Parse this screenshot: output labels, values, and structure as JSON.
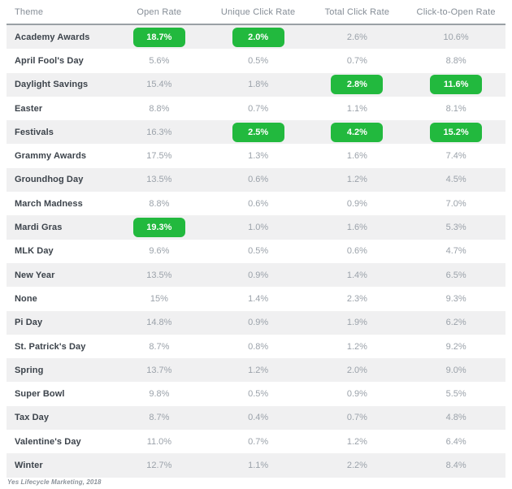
{
  "chart_data": {
    "type": "table",
    "columns": [
      "Theme",
      "Open Rate",
      "Unique Click Rate",
      "Total Click Rate",
      "Click-to-Open Rate"
    ],
    "highlight_note": "green badge marks the top value(s) in each metric column",
    "rows": [
      {
        "theme": "Academy Awards",
        "values": [
          "18.7%",
          "2.0%",
          "2.6%",
          "10.6%"
        ],
        "highlight": [
          true,
          true,
          false,
          false
        ]
      },
      {
        "theme": "April Fool's Day",
        "values": [
          "5.6%",
          "0.5%",
          "0.7%",
          "8.8%"
        ],
        "highlight": [
          false,
          false,
          false,
          false
        ]
      },
      {
        "theme": "Daylight Savings",
        "values": [
          "15.4%",
          "1.8%",
          "2.8%",
          "11.6%"
        ],
        "highlight": [
          false,
          false,
          true,
          true
        ]
      },
      {
        "theme": "Easter",
        "values": [
          "8.8%",
          "0.7%",
          "1.1%",
          "8.1%"
        ],
        "highlight": [
          false,
          false,
          false,
          false
        ]
      },
      {
        "theme": "Festivals",
        "values": [
          "16.3%",
          "2.5%",
          "4.2%",
          "15.2%"
        ],
        "highlight": [
          false,
          true,
          true,
          true
        ]
      },
      {
        "theme": "Grammy Awards",
        "values": [
          "17.5%",
          "1.3%",
          "1.6%",
          "7.4%"
        ],
        "highlight": [
          false,
          false,
          false,
          false
        ]
      },
      {
        "theme": "Groundhog Day",
        "values": [
          "13.5%",
          "0.6%",
          "1.2%",
          "4.5%"
        ],
        "highlight": [
          false,
          false,
          false,
          false
        ]
      },
      {
        "theme": "March Madness",
        "values": [
          "8.8%",
          "0.6%",
          "0.9%",
          "7.0%"
        ],
        "highlight": [
          false,
          false,
          false,
          false
        ]
      },
      {
        "theme": "Mardi Gras",
        "values": [
          "19.3%",
          "1.0%",
          "1.6%",
          "5.3%"
        ],
        "highlight": [
          true,
          false,
          false,
          false
        ]
      },
      {
        "theme": "MLK Day",
        "values": [
          "9.6%",
          "0.5%",
          "0.6%",
          "4.7%"
        ],
        "highlight": [
          false,
          false,
          false,
          false
        ]
      },
      {
        "theme": "New Year",
        "values": [
          "13.5%",
          "0.9%",
          "1.4%",
          "6.5%"
        ],
        "highlight": [
          false,
          false,
          false,
          false
        ]
      },
      {
        "theme": "None",
        "values": [
          "15%",
          "1.4%",
          "2.3%",
          "9.3%"
        ],
        "highlight": [
          false,
          false,
          false,
          false
        ]
      },
      {
        "theme": "Pi Day",
        "values": [
          "14.8%",
          "0.9%",
          "1.9%",
          "6.2%"
        ],
        "highlight": [
          false,
          false,
          false,
          false
        ]
      },
      {
        "theme": "St. Patrick's Day",
        "values": [
          "8.7%",
          "0.8%",
          "1.2%",
          "9.2%"
        ],
        "highlight": [
          false,
          false,
          false,
          false
        ]
      },
      {
        "theme": "Spring",
        "values": [
          "13.7%",
          "1.2%",
          "2.0%",
          "9.0%"
        ],
        "highlight": [
          false,
          false,
          false,
          false
        ]
      },
      {
        "theme": "Super Bowl",
        "values": [
          "9.8%",
          "0.5%",
          "0.9%",
          "5.5%"
        ],
        "highlight": [
          false,
          false,
          false,
          false
        ]
      },
      {
        "theme": "Tax Day",
        "values": [
          "8.7%",
          "0.4%",
          "0.7%",
          "4.8%"
        ],
        "highlight": [
          false,
          false,
          false,
          false
        ]
      },
      {
        "theme": "Valentine's Day",
        "values": [
          "11.0%",
          "0.7%",
          "1.2%",
          "6.4%"
        ],
        "highlight": [
          false,
          false,
          false,
          false
        ]
      },
      {
        "theme": "Winter",
        "values": [
          "12.7%",
          "1.1%",
          "2.2%",
          "8.4%"
        ],
        "highlight": [
          false,
          false,
          false,
          false
        ]
      }
    ]
  },
  "footer": {
    "source_note": "Yes Lifecycle Marketing, 2018"
  },
  "colors": {
    "highlight_green": "#22b93e",
    "row_stripe": "#f0f0f1",
    "theme_text": "#3c434b",
    "value_text": "#9ba2aa",
    "header_text": "#858d96",
    "separator": "#9aa0a5"
  }
}
